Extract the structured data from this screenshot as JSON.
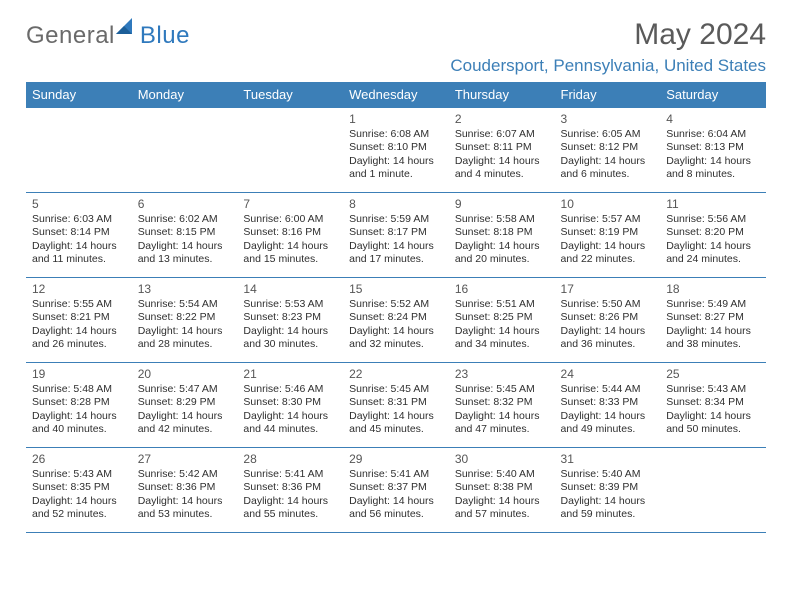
{
  "brand": {
    "text1": "General",
    "text2": "Blue"
  },
  "title": {
    "month_year": "May 2024",
    "location": "Coudersport, Pennsylvania, United States"
  },
  "colors": {
    "header_bg": "#3c7fb7",
    "header_text": "#ffffff",
    "rule": "#3c7fb7",
    "location": "#3c7fb7",
    "logo_gray": "#6a6a6a",
    "title_gray": "#5a5a5a",
    "body_text": "#2f2f2f"
  },
  "day_headers": [
    "Sunday",
    "Monday",
    "Tuesday",
    "Wednesday",
    "Thursday",
    "Friday",
    "Saturday"
  ],
  "weeks": [
    [
      null,
      null,
      null,
      {
        "n": "1",
        "sr": "6:08 AM",
        "ss": "8:10 PM",
        "dl": "14 hours and 1 minute."
      },
      {
        "n": "2",
        "sr": "6:07 AM",
        "ss": "8:11 PM",
        "dl": "14 hours and 4 minutes."
      },
      {
        "n": "3",
        "sr": "6:05 AM",
        "ss": "8:12 PM",
        "dl": "14 hours and 6 minutes."
      },
      {
        "n": "4",
        "sr": "6:04 AM",
        "ss": "8:13 PM",
        "dl": "14 hours and 8 minutes."
      }
    ],
    [
      {
        "n": "5",
        "sr": "6:03 AM",
        "ss": "8:14 PM",
        "dl": "14 hours and 11 minutes."
      },
      {
        "n": "6",
        "sr": "6:02 AM",
        "ss": "8:15 PM",
        "dl": "14 hours and 13 minutes."
      },
      {
        "n": "7",
        "sr": "6:00 AM",
        "ss": "8:16 PM",
        "dl": "14 hours and 15 minutes."
      },
      {
        "n": "8",
        "sr": "5:59 AM",
        "ss": "8:17 PM",
        "dl": "14 hours and 17 minutes."
      },
      {
        "n": "9",
        "sr": "5:58 AM",
        "ss": "8:18 PM",
        "dl": "14 hours and 20 minutes."
      },
      {
        "n": "10",
        "sr": "5:57 AM",
        "ss": "8:19 PM",
        "dl": "14 hours and 22 minutes."
      },
      {
        "n": "11",
        "sr": "5:56 AM",
        "ss": "8:20 PM",
        "dl": "14 hours and 24 minutes."
      }
    ],
    [
      {
        "n": "12",
        "sr": "5:55 AM",
        "ss": "8:21 PM",
        "dl": "14 hours and 26 minutes."
      },
      {
        "n": "13",
        "sr": "5:54 AM",
        "ss": "8:22 PM",
        "dl": "14 hours and 28 minutes."
      },
      {
        "n": "14",
        "sr": "5:53 AM",
        "ss": "8:23 PM",
        "dl": "14 hours and 30 minutes."
      },
      {
        "n": "15",
        "sr": "5:52 AM",
        "ss": "8:24 PM",
        "dl": "14 hours and 32 minutes."
      },
      {
        "n": "16",
        "sr": "5:51 AM",
        "ss": "8:25 PM",
        "dl": "14 hours and 34 minutes."
      },
      {
        "n": "17",
        "sr": "5:50 AM",
        "ss": "8:26 PM",
        "dl": "14 hours and 36 minutes."
      },
      {
        "n": "18",
        "sr": "5:49 AM",
        "ss": "8:27 PM",
        "dl": "14 hours and 38 minutes."
      }
    ],
    [
      {
        "n": "19",
        "sr": "5:48 AM",
        "ss": "8:28 PM",
        "dl": "14 hours and 40 minutes."
      },
      {
        "n": "20",
        "sr": "5:47 AM",
        "ss": "8:29 PM",
        "dl": "14 hours and 42 minutes."
      },
      {
        "n": "21",
        "sr": "5:46 AM",
        "ss": "8:30 PM",
        "dl": "14 hours and 44 minutes."
      },
      {
        "n": "22",
        "sr": "5:45 AM",
        "ss": "8:31 PM",
        "dl": "14 hours and 45 minutes."
      },
      {
        "n": "23",
        "sr": "5:45 AM",
        "ss": "8:32 PM",
        "dl": "14 hours and 47 minutes."
      },
      {
        "n": "24",
        "sr": "5:44 AM",
        "ss": "8:33 PM",
        "dl": "14 hours and 49 minutes."
      },
      {
        "n": "25",
        "sr": "5:43 AM",
        "ss": "8:34 PM",
        "dl": "14 hours and 50 minutes."
      }
    ],
    [
      {
        "n": "26",
        "sr": "5:43 AM",
        "ss": "8:35 PM",
        "dl": "14 hours and 52 minutes."
      },
      {
        "n": "27",
        "sr": "5:42 AM",
        "ss": "8:36 PM",
        "dl": "14 hours and 53 minutes."
      },
      {
        "n": "28",
        "sr": "5:41 AM",
        "ss": "8:36 PM",
        "dl": "14 hours and 55 minutes."
      },
      {
        "n": "29",
        "sr": "5:41 AM",
        "ss": "8:37 PM",
        "dl": "14 hours and 56 minutes."
      },
      {
        "n": "30",
        "sr": "5:40 AM",
        "ss": "8:38 PM",
        "dl": "14 hours and 57 minutes."
      },
      {
        "n": "31",
        "sr": "5:40 AM",
        "ss": "8:39 PM",
        "dl": "14 hours and 59 minutes."
      },
      null
    ]
  ],
  "labels": {
    "sunrise": "Sunrise: ",
    "sunset": "Sunset: ",
    "daylight": "Daylight: "
  }
}
